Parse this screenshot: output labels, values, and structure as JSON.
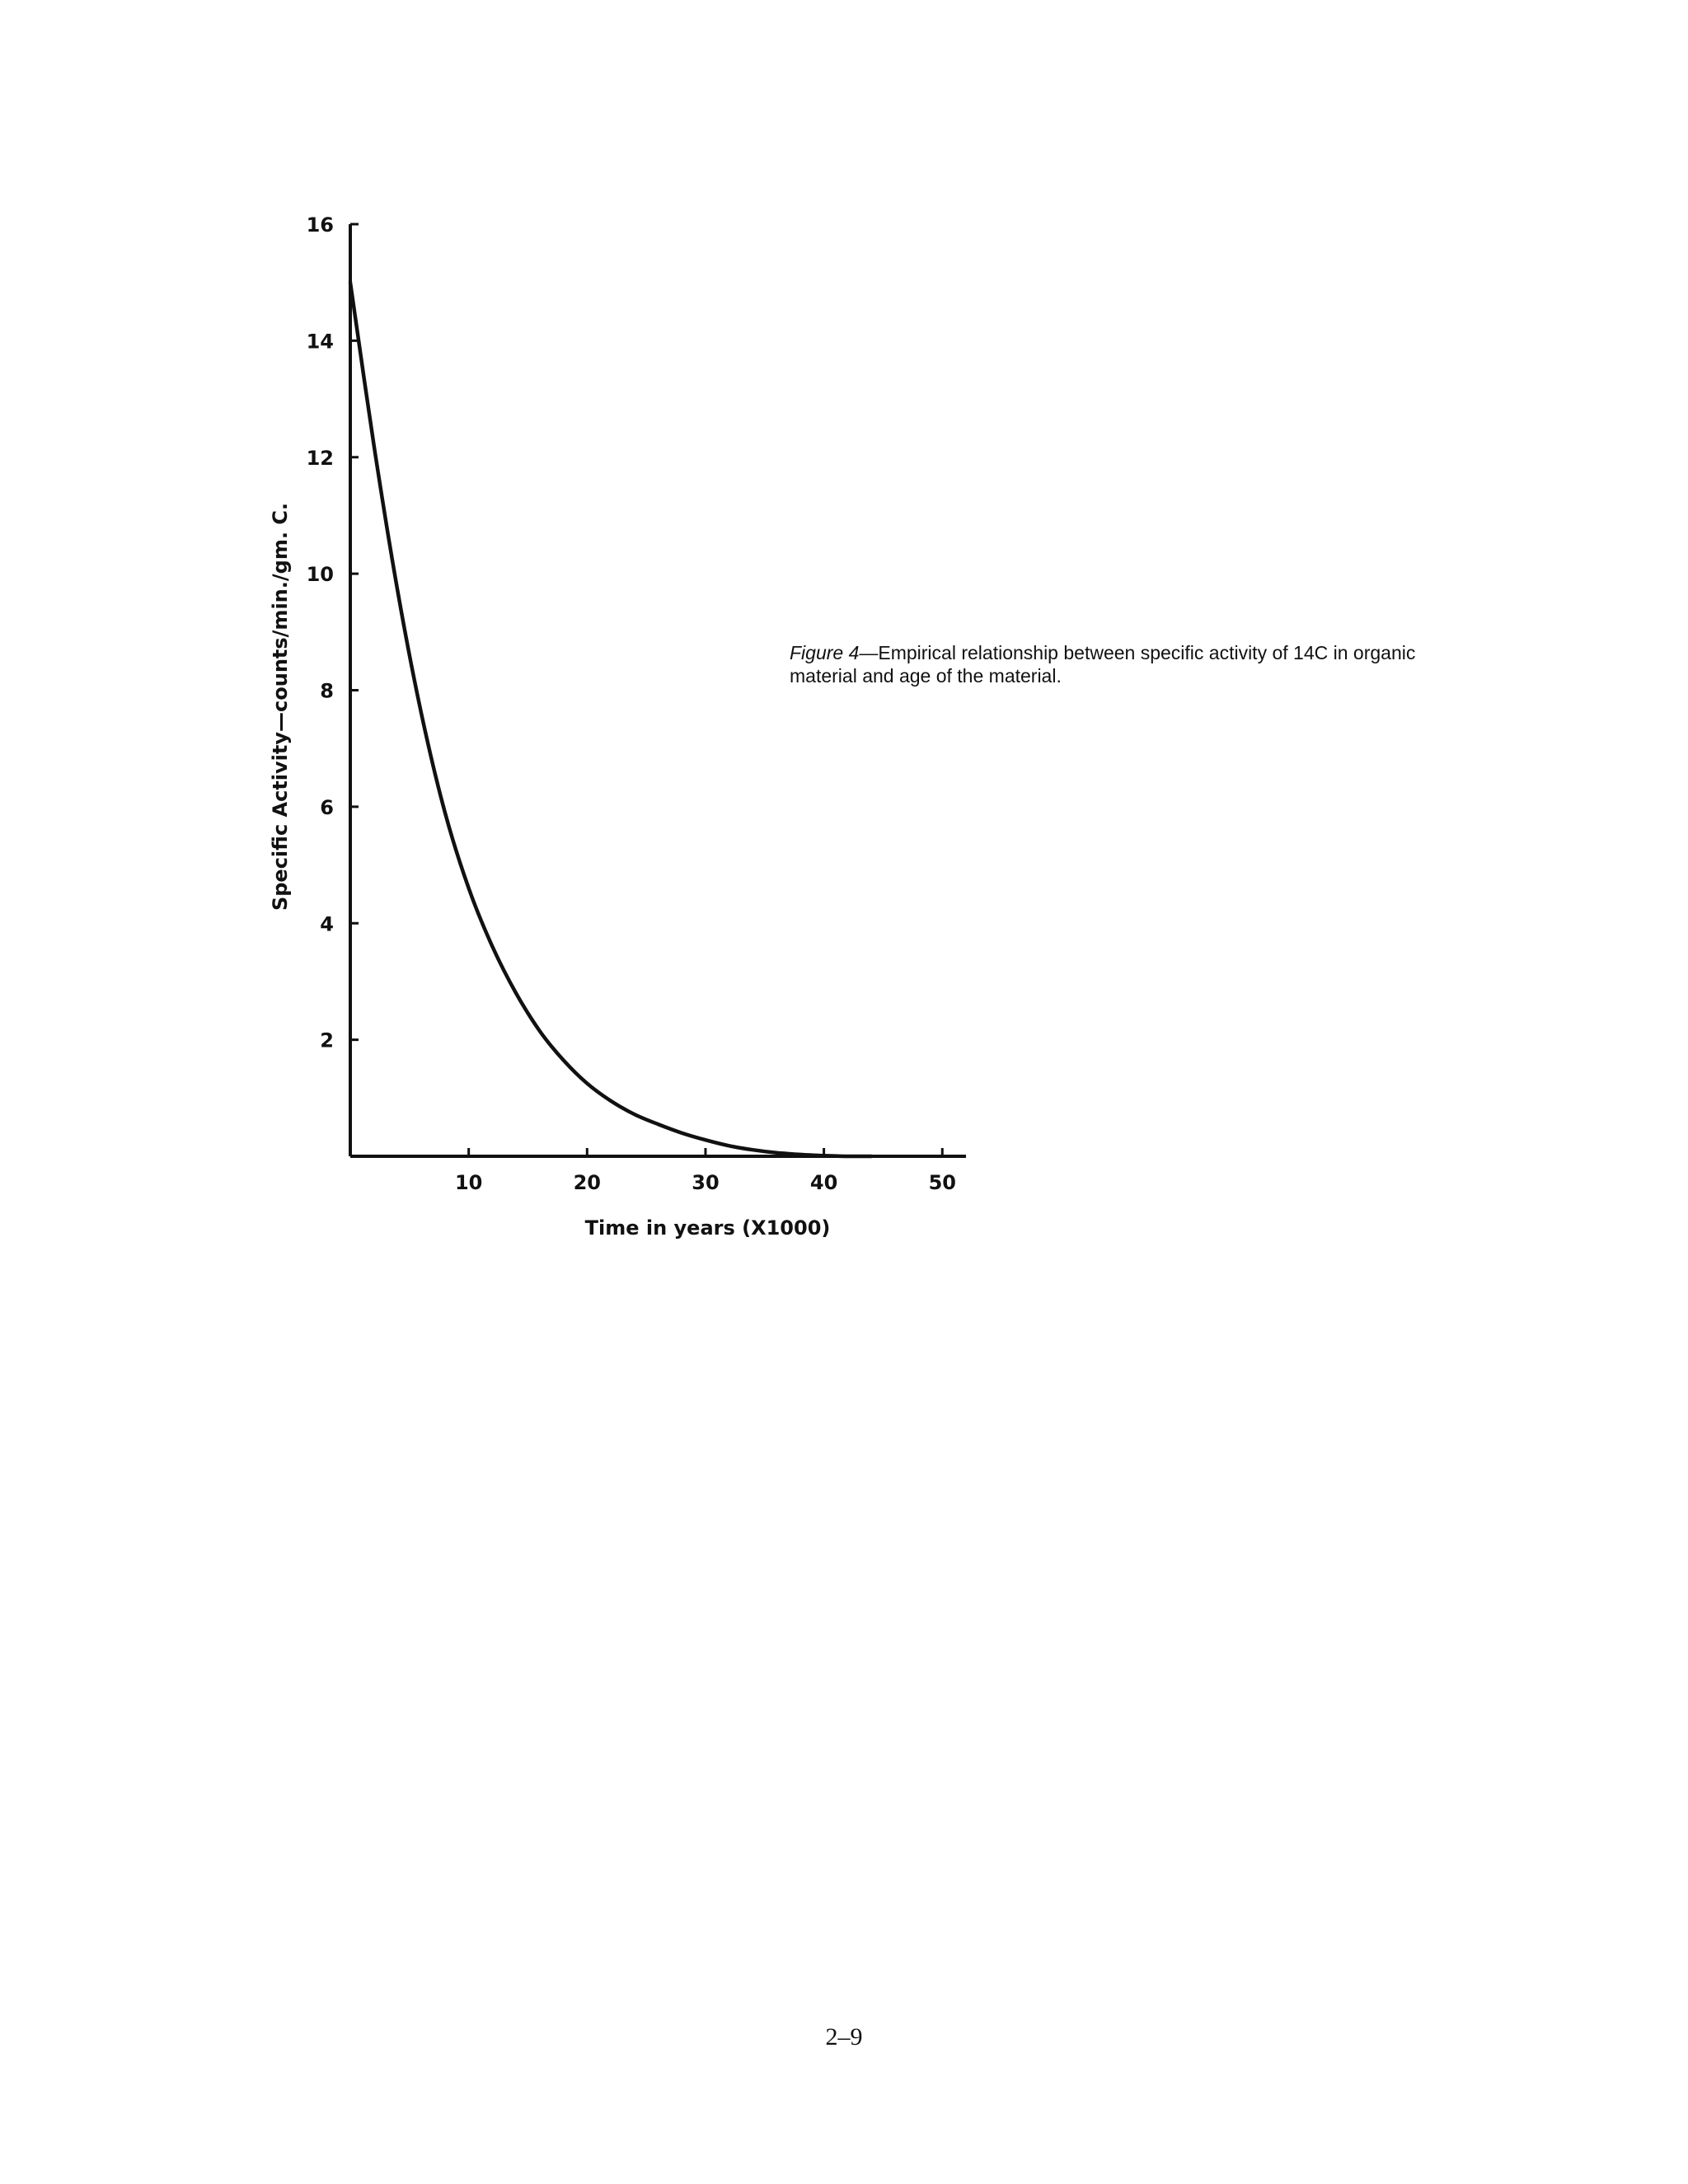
{
  "caption": {
    "figure_ref": "Figure 4",
    "dash": "—",
    "text": "Empirical relationship between specific activity of 14C in organic material and age of the material."
  },
  "page_number": "2–9",
  "chart_data": {
    "type": "line",
    "title": "",
    "xlabel": "Time in years (X1000)",
    "ylabel": "Specific Activity—counts/min./gm. C.",
    "xlim": [
      0,
      52
    ],
    "ylim": [
      0,
      16
    ],
    "x_ticks": [
      10,
      20,
      30,
      40,
      50
    ],
    "y_ticks": [
      2,
      4,
      6,
      8,
      10,
      12,
      14,
      16
    ],
    "grid": false,
    "legend": "none",
    "line_color": "#111111",
    "series": [
      {
        "x": [
          0,
          2,
          4,
          6,
          8,
          10,
          12,
          14,
          16,
          18,
          20,
          22,
          24,
          26,
          28,
          30,
          32,
          34,
          36,
          38,
          40,
          42,
          44
        ],
        "values": [
          15.0,
          12.2,
          9.7,
          7.6,
          5.9,
          4.6,
          3.6,
          2.8,
          2.15,
          1.65,
          1.25,
          0.95,
          0.72,
          0.55,
          0.4,
          0.28,
          0.18,
          0.11,
          0.06,
          0.03,
          0.01,
          0.0,
          0.0
        ]
      }
    ]
  }
}
